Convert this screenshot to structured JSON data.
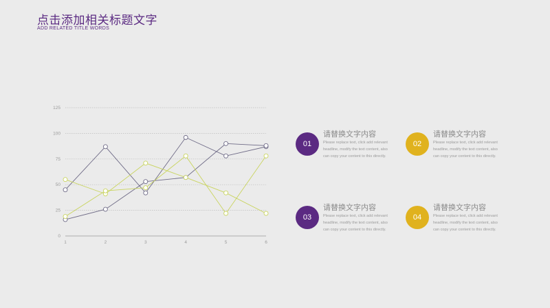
{
  "header": {
    "title": "点击添加相关标题文字",
    "subtitle": "ADD RELATED TITLE WORDS"
  },
  "colors": {
    "purple": "#5b2a82",
    "gold": "#e0b21e",
    "series_dark": "#6e6a86",
    "series_lime": "#c9d45e",
    "grid": "#bdbdbd"
  },
  "chart_data": {
    "type": "line",
    "x": [
      1,
      2,
      3,
      4,
      5,
      6
    ],
    "ylim": [
      0,
      125
    ],
    "yticks": [
      0,
      25,
      50,
      75,
      100,
      125
    ],
    "grid": true,
    "series": [
      {
        "color": "#6e6a86",
        "values": [
          45,
          87,
          42,
          96,
          78,
          87
        ]
      },
      {
        "color": "#6e6a86",
        "values": [
          16,
          26,
          53,
          57,
          90,
          88
        ]
      },
      {
        "color": "#c9d45e",
        "values": [
          55,
          41,
          71,
          57,
          42,
          22
        ]
      },
      {
        "color": "#c9d45e",
        "values": [
          19,
          44,
          47,
          78,
          22,
          78
        ]
      }
    ]
  },
  "items": [
    {
      "number": "01",
      "heading": "请替换文字内容",
      "body": "Please replace text, click add relevant headline, modify the text content, also can copy your content to this directly.",
      "color": "#5b2a82"
    },
    {
      "number": "02",
      "heading": "请替换文字内容",
      "body": "Please replace text, click add relevant headline, modify the text content, also can copy your content to this directly.",
      "color": "#e0b21e"
    },
    {
      "number": "03",
      "heading": "请替换文字内容",
      "body": "Please replace text, click add relevant headline, modify the text content, also can copy your content to this directly.",
      "color": "#5b2a82"
    },
    {
      "number": "04",
      "heading": "请替换文字内容",
      "body": "Please replace text, click add relevant headline, modify the text content, also can copy your content to this directly.",
      "color": "#e0b21e"
    }
  ]
}
